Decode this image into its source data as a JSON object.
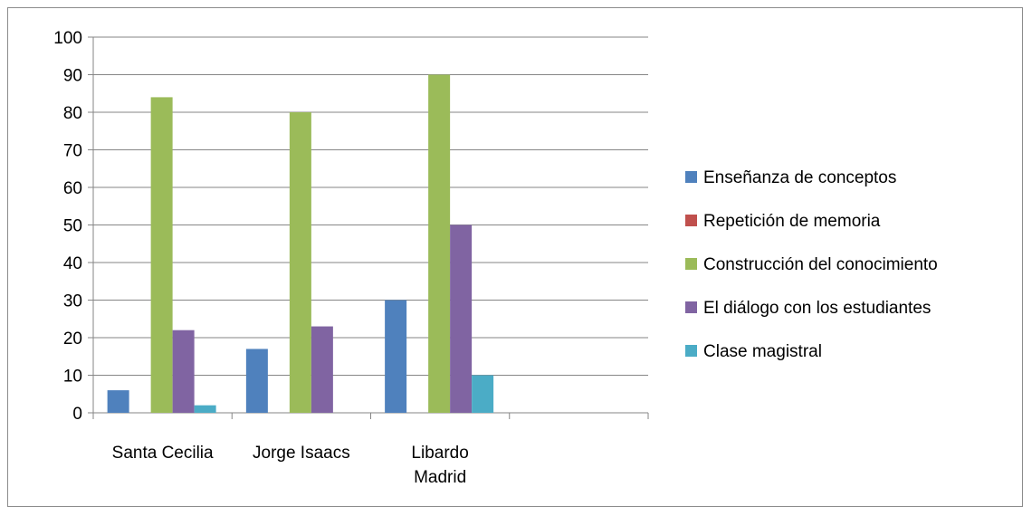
{
  "chart_data": {
    "type": "bar",
    "categories": [
      [
        "Santa Cecilia"
      ],
      [
        "Jorge Isaacs"
      ],
      [
        "Libardo",
        "Madrid"
      ],
      [
        ""
      ]
    ],
    "series": [
      {
        "name": "Enseñanza de conceptos",
        "color": "#4f81bd",
        "values": [
          6,
          17,
          30,
          null
        ]
      },
      {
        "name": "Repetición de memoria",
        "color": "#c0504d",
        "values": [
          0,
          0,
          0,
          null
        ]
      },
      {
        "name": "Construcción del conocimiento",
        "color": "#9bbb59",
        "values": [
          84,
          80,
          90,
          null
        ]
      },
      {
        "name": "El diálogo con los estudiantes",
        "color": "#8064a2",
        "values": [
          22,
          23,
          50,
          null
        ]
      },
      {
        "name": "Clase magistral",
        "color": "#4bacc6",
        "values": [
          2,
          0,
          10,
          null
        ]
      }
    ],
    "ylim": [
      0,
      100
    ],
    "yticks": [
      "0",
      "10",
      "20",
      "30",
      "40",
      "50",
      "60",
      "70",
      "80",
      "90",
      "100"
    ],
    "grid": true,
    "legend_position": "right"
  }
}
